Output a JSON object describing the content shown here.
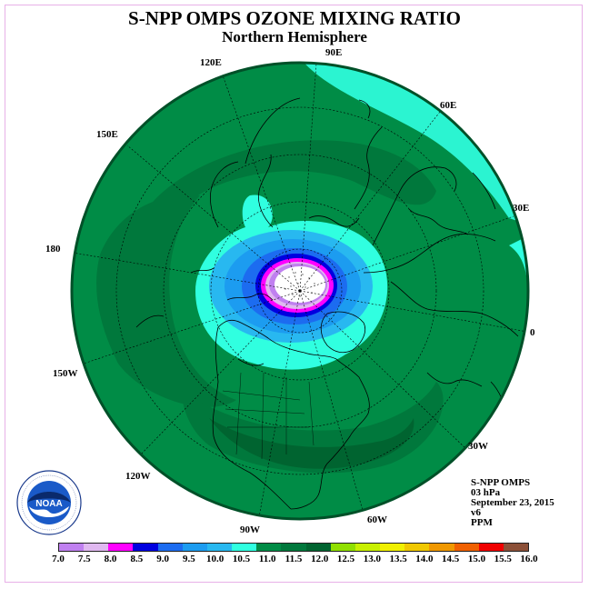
{
  "header": {
    "title": "S-NPP OMPS OZONE MIXING RATIO",
    "subtitle": "Northern Hemisphere"
  },
  "map": {
    "projection": "north-polar-stereographic",
    "meridian_labels": [
      "90E",
      "60E",
      "30E",
      "0",
      "30W",
      "60W",
      "90W",
      "120W",
      "150W",
      "180",
      "150E",
      "120E"
    ],
    "land_color": "#008c46",
    "ocean_color": "#008c46"
  },
  "info": {
    "lines": [
      "S-NPP OMPS",
      "03 hPa",
      "September 23, 2015",
      "v6",
      "PPM"
    ]
  },
  "colorbar": {
    "ticks": [
      "7.0",
      "7.5",
      "8.0",
      "8.5",
      "9.0",
      "9.5",
      "10.0",
      "10.5",
      "11.0",
      "11.5",
      "12.0",
      "12.5",
      "13.0",
      "13.5",
      "14.0",
      "14.5",
      "15.0",
      "15.5",
      "16.0"
    ],
    "colors": [
      "#c080f0",
      "#e0b8f0",
      "#ff00ff",
      "#0000e0",
      "#1c6cf0",
      "#1c9cf0",
      "#28b8f0",
      "#30ffe0",
      "#008c46",
      "#00783c",
      "#006430",
      "#90e000",
      "#c8f000",
      "#f0f000",
      "#f0c800",
      "#f09800",
      "#f06000",
      "#f00000",
      "#8c5038"
    ]
  },
  "logo": {
    "text": "NOAA",
    "ring_text": "NATIONAL OCEANIC AND ATMOSPHERIC ADMINISTRATION · U.S. DEPARTMENT OF COMMERCE"
  }
}
